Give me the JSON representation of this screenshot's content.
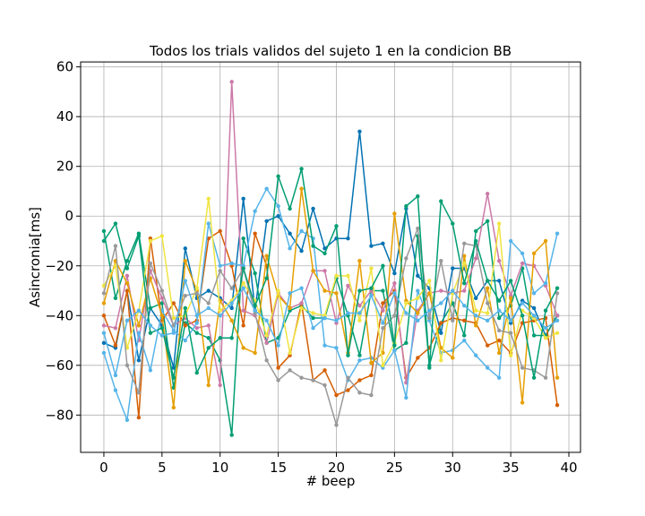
{
  "chart_data": {
    "type": "line",
    "title": "Todos los trials validos del sujeto 1 en la condicion BB",
    "xlabel": "# beep",
    "ylabel": "Asincronia[ms]",
    "xlim": [
      -2,
      41
    ],
    "ylim": [
      -95,
      62
    ],
    "xticks": [
      0,
      5,
      10,
      15,
      20,
      25,
      30,
      35,
      40
    ],
    "yticks": [
      -80,
      -60,
      -40,
      -20,
      0,
      20,
      40,
      60
    ],
    "grid": true,
    "x": [
      0,
      1,
      2,
      3,
      4,
      5,
      6,
      7,
      8,
      9,
      10,
      11,
      12,
      13,
      14,
      15,
      16,
      17,
      18,
      19,
      20,
      21,
      22,
      23,
      24,
      25,
      26,
      27,
      28,
      29,
      30,
      31,
      32,
      33,
      34,
      35,
      36,
      37,
      38,
      39
    ],
    "series": [
      {
        "color": "#0072B2",
        "values": [
          -51,
          -53,
          -30,
          -58,
          -37,
          -44,
          -61,
          -13,
          -33,
          -30,
          -33,
          -37,
          7,
          -38,
          -2,
          0,
          -7,
          -14,
          3,
          -13,
          -9,
          -9,
          34,
          -12,
          -11,
          -23,
          3,
          -24,
          -29,
          -47,
          -21,
          -21,
          -33,
          -26,
          -26,
          -43,
          -34,
          -37,
          -48,
          -40
        ]
      },
      {
        "color": "#009E73",
        "values": [
          -6,
          -33,
          -18,
          -7,
          -37,
          -35,
          -69,
          -43,
          -47,
          -49,
          -58,
          -88,
          -9,
          -23,
          -51,
          -49,
          -38,
          -36,
          -41,
          -41,
          -25,
          -40,
          -56,
          -30,
          -30,
          -54,
          -51,
          -8,
          -60,
          -43,
          -35,
          -48,
          -6,
          -2,
          -41,
          -36,
          -21,
          -48,
          -48,
          -40
        ]
      },
      {
        "color": "#D55E00",
        "values": [
          -40,
          -52,
          -30,
          -81,
          -9,
          -42,
          -35,
          -44,
          -42,
          -9,
          -6,
          -20,
          -44,
          -7,
          -20,
          -61,
          -56,
          -35,
          -66,
          -62,
          -72,
          -70,
          -66,
          -64,
          -35,
          -30,
          -65,
          -57,
          -53,
          -43,
          -41,
          -42,
          -43,
          -52,
          -50,
          -55,
          -43,
          -42,
          -41,
          -76
        ]
      },
      {
        "color": "#CC79A7",
        "values": [
          -44,
          -45,
          -24,
          -50,
          -22,
          -33,
          -44,
          -41,
          -45,
          -44,
          -68,
          54,
          -38,
          -40,
          -51,
          -31,
          -37,
          -35,
          -22,
          -22,
          -43,
          -28,
          -36,
          -30,
          -38,
          -27,
          -67,
          -38,
          -31,
          -30,
          -31,
          -30,
          -17,
          9,
          -18,
          -32,
          -19,
          -20,
          -28,
          -40
        ]
      },
      {
        "color": "#56B4E9",
        "values": [
          -55,
          -70,
          -82,
          -47,
          -62,
          -38,
          -46,
          -50,
          -43,
          -3,
          -20,
          -19,
          -20,
          2,
          11,
          4,
          -13,
          -6,
          -9,
          -52,
          -53,
          -66,
          -58,
          -57,
          -61,
          -54,
          -73,
          -30,
          -42,
          -55,
          -54,
          -50,
          -56,
          -61,
          -65,
          -10,
          -15,
          -31,
          -27,
          -7
        ]
      },
      {
        "color": "#E69F00",
        "values": [
          -35,
          -18,
          -27,
          -44,
          -25,
          -40,
          -77,
          -18,
          -30,
          -68,
          -34,
          -42,
          -53,
          -55,
          -16,
          -32,
          -37,
          11,
          -22,
          -30,
          -31,
          -55,
          -18,
          -59,
          -55,
          1,
          -34,
          -39,
          -31,
          -53,
          -57,
          -16,
          -44,
          -29,
          -55,
          -33,
          -75,
          -15,
          -10,
          -65
        ]
      },
      {
        "color": "#F0E442",
        "values": [
          -28,
          -20,
          -53,
          -38,
          -10,
          -8,
          -41,
          -40,
          -29,
          7,
          -38,
          -34,
          -27,
          -34,
          -48,
          -30,
          -55,
          -37,
          -39,
          -40,
          -24,
          -24,
          -42,
          -21,
          -60,
          -51,
          -35,
          -33,
          -26,
          -58,
          -31,
          -19,
          -38,
          -39,
          -3,
          -56,
          -38,
          -41,
          -49,
          -47
        ]
      },
      {
        "color": "#999999",
        "values": [
          -31,
          -12,
          -60,
          -71,
          -19,
          -30,
          -44,
          -32,
          -31,
          -35,
          -22,
          -29,
          -21,
          -39,
          -58,
          -66,
          -62,
          -65,
          -66,
          -68,
          -84,
          -65,
          -71,
          -72,
          -45,
          -40,
          -17,
          -5,
          -41,
          -18,
          -42,
          -11,
          -12,
          -35,
          -46,
          -47,
          -61,
          -62,
          -65,
          -31
        ]
      },
      {
        "color": "#009E73",
        "values": [
          -10,
          -3,
          -21,
          -8,
          -47,
          -45,
          -65,
          -37,
          -63,
          -53,
          -49,
          -49,
          -21,
          -36,
          -25,
          16,
          3,
          19,
          -12,
          -15,
          -4,
          -56,
          -30,
          -29,
          -20,
          -52,
          4,
          8,
          -61,
          6,
          -3,
          -27,
          -10,
          -26,
          -34,
          -26,
          -40,
          -65,
          -38,
          -29
        ]
      },
      {
        "color": "#56B4E9",
        "values": [
          -47,
          -64,
          -42,
          -38,
          -44,
          -48,
          -47,
          -26,
          -40,
          -37,
          -40,
          -35,
          -29,
          -38,
          -42,
          -52,
          -31,
          -29,
          -45,
          -41,
          -42,
          -39,
          -39,
          -32,
          -43,
          -31,
          -39,
          -42,
          -38,
          -35,
          -30,
          -36,
          -40,
          -42,
          -38,
          -42,
          -35,
          -40,
          -45,
          -42
        ]
      }
    ]
  }
}
